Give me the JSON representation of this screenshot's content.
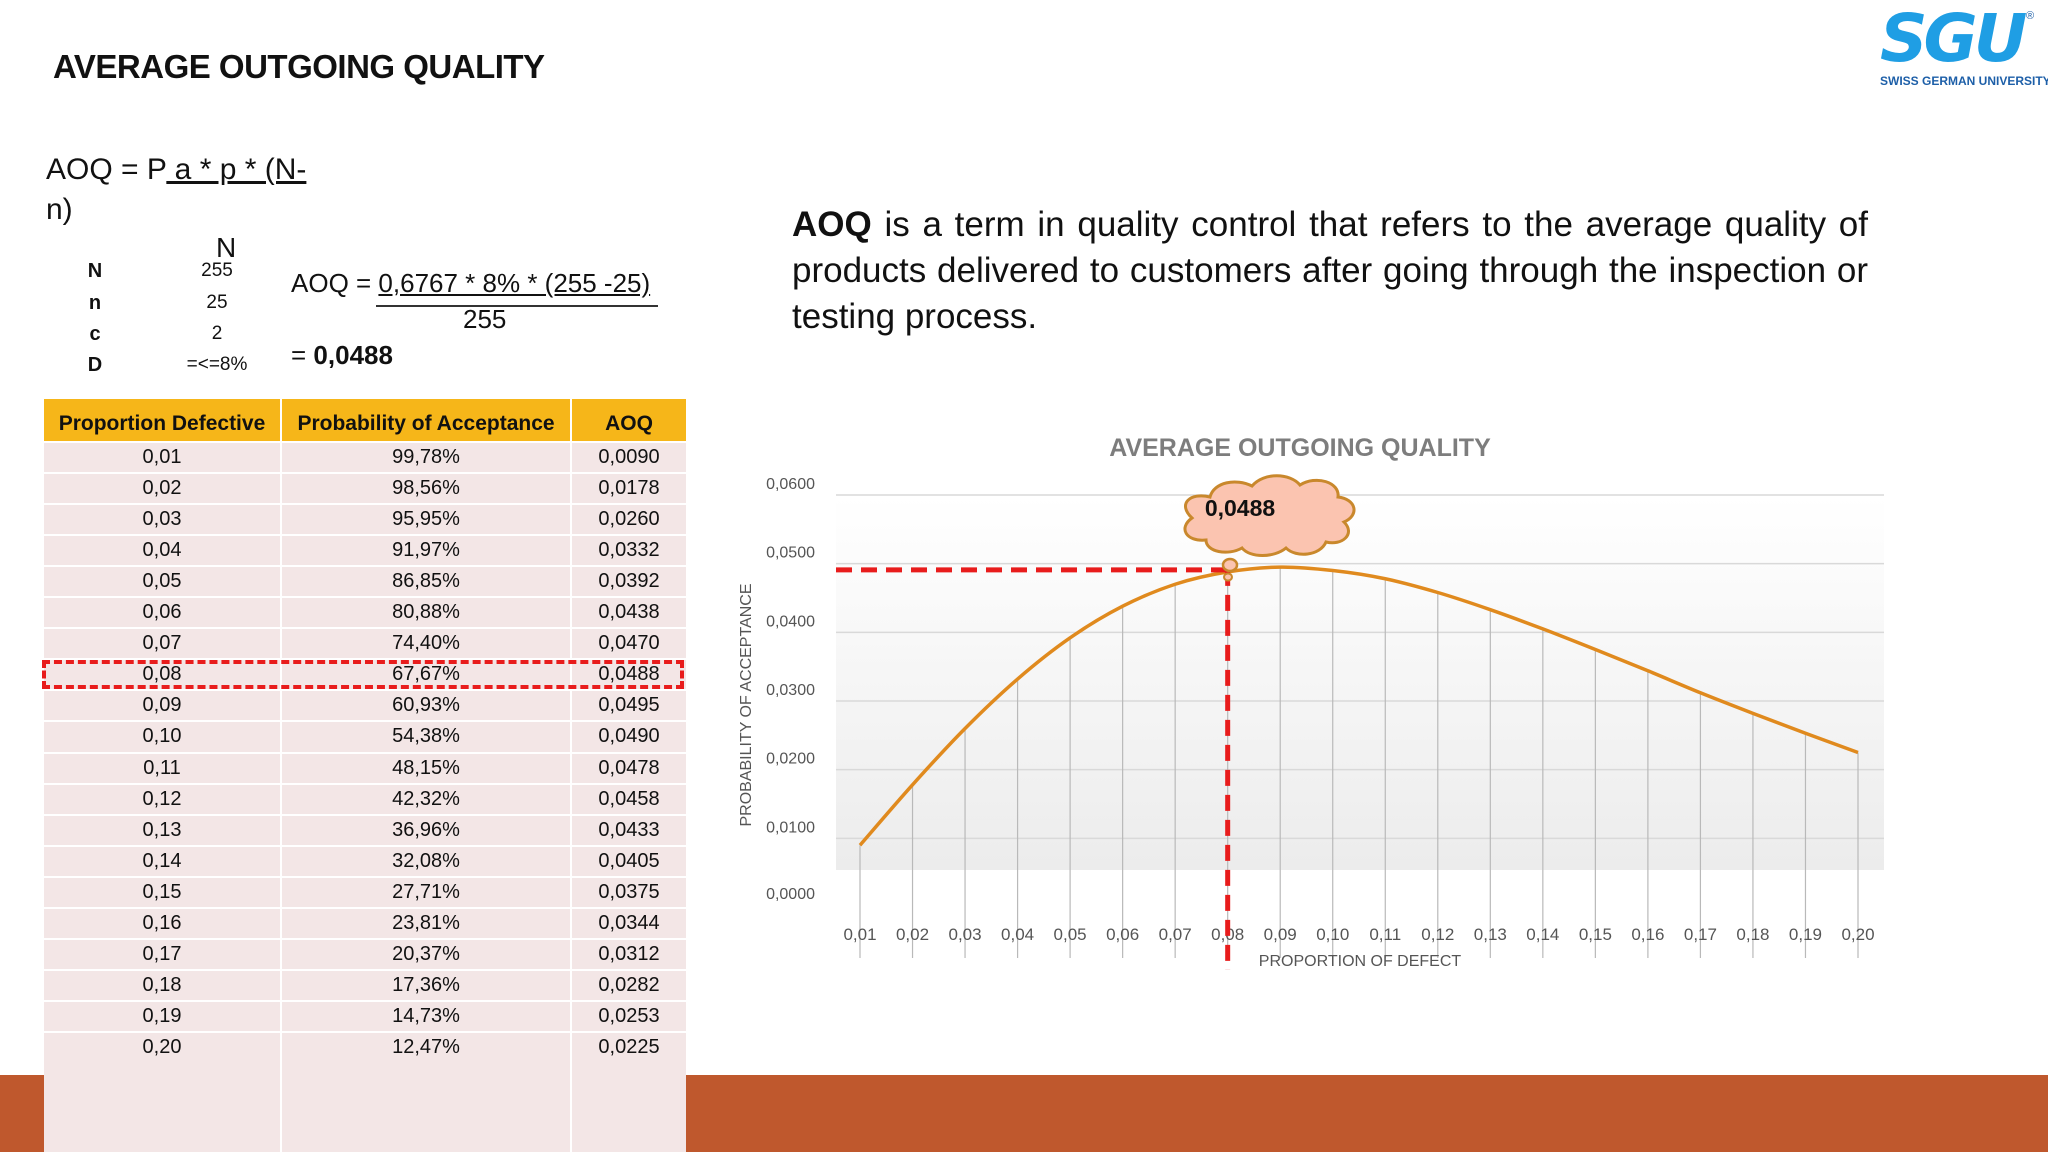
{
  "title": "AVERAGE OUTGOING QUALITY",
  "logo": {
    "mark": "SGU",
    "subtitle": "SWISS GERMAN UNIVERSITY",
    "reg": "®"
  },
  "formula": {
    "prefix": "AOQ = P",
    "underlined": " a * p * (N-",
    "suffix": "n)",
    "denominator": "N"
  },
  "params": [
    {
      "key": "N",
      "value": "255"
    },
    {
      "key": "n",
      "value": "25"
    },
    {
      "key": "c",
      "value": "2"
    },
    {
      "key": "D",
      "value": "=<=8%"
    }
  ],
  "calc": {
    "prefix": "AOQ = ",
    "numerator": "0,6767 * 8% * (255 -25)",
    "denominator": "255",
    "result_prefix": "= ",
    "result": "0,0488"
  },
  "description": {
    "term": "AOQ",
    "text": " is a term in quality control that refers to the average quality of products delivered to customers after going through the inspection or testing process."
  },
  "table": {
    "headers": [
      "Proportion Defective",
      "Probability of Acceptance",
      "AOQ"
    ],
    "rows": [
      [
        "0,01",
        "99,78%",
        "0,0090"
      ],
      [
        "0,02",
        "98,56%",
        "0,0178"
      ],
      [
        "0,03",
        "95,95%",
        "0,0260"
      ],
      [
        "0,04",
        "91,97%",
        "0,0332"
      ],
      [
        "0,05",
        "86,85%",
        "0,0392"
      ],
      [
        "0,06",
        "80,88%",
        "0,0438"
      ],
      [
        "0,07",
        "74,40%",
        "0,0470"
      ],
      [
        "0,08",
        "67,67%",
        "0,0488"
      ],
      [
        "0,09",
        "60,93%",
        "0,0495"
      ],
      [
        "0,10",
        "54,38%",
        "0,0490"
      ],
      [
        "0,11",
        "48,15%",
        "0,0478"
      ],
      [
        "0,12",
        "42,32%",
        "0,0458"
      ],
      [
        "0,13",
        "36,96%",
        "0,0433"
      ],
      [
        "0,14",
        "32,08%",
        "0,0405"
      ],
      [
        "0,15",
        "27,71%",
        "0,0375"
      ],
      [
        "0,16",
        "23,81%",
        "0,0344"
      ],
      [
        "0,17",
        "20,37%",
        "0,0312"
      ],
      [
        "0,18",
        "17,36%",
        "0,0282"
      ],
      [
        "0,19",
        "14,73%",
        "0,0253"
      ],
      [
        "0,20",
        "12,47%",
        "0,0225"
      ]
    ],
    "highlight_row": 7
  },
  "chart_data": {
    "type": "line",
    "title": "AVERAGE OUTGOING QUALITY",
    "xlabel": "PROPORTION OF DEFECT",
    "ylabel": "PROBABILITY OF ACCEPTANCE",
    "categories": [
      "0,01",
      "0,02",
      "0,03",
      "0,04",
      "0,05",
      "0,06",
      "0,07",
      "0,08",
      "0,09",
      "0,10",
      "0,11",
      "0,12",
      "0,13",
      "0,14",
      "0,15",
      "0,16",
      "0,17",
      "0,18",
      "0,19",
      "0,20"
    ],
    "values": [
      0.009,
      0.0178,
      0.026,
      0.0332,
      0.0392,
      0.0438,
      0.047,
      0.0488,
      0.0495,
      0.049,
      0.0478,
      0.0458,
      0.0433,
      0.0405,
      0.0375,
      0.0344,
      0.0312,
      0.0282,
      0.0253,
      0.0225
    ],
    "y_ticks": [
      "0,0000",
      "0,0100",
      "0,0200",
      "0,0300",
      "0,0400",
      "0,0500",
      "0,0600"
    ],
    "ylim": [
      0,
      0.06
    ],
    "grid": true,
    "highlight": {
      "category_index": 7,
      "value": 0.0488,
      "label": "0,0488"
    },
    "colors": {
      "line": "#e08a1e",
      "highlight": "#e81c1c",
      "callout_fill": "#fbc4b0",
      "callout_stroke": "#c9882c"
    }
  },
  "colors": {
    "footer": "#bf582d",
    "table_header": "#f6b619",
    "table_body": "#f3e6e6"
  }
}
